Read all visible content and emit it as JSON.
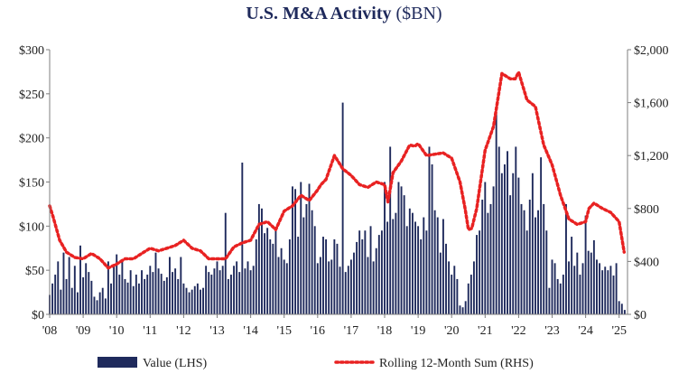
{
  "title": {
    "main": "U.S. M&A Activity",
    "unit": "($BN)"
  },
  "chart_data": {
    "type": "bar",
    "title": "U.S. M&A Activity ($BN)",
    "left_axis": {
      "ticks": [
        "$0",
        "$50",
        "$100",
        "$150",
        "$200",
        "$250",
        "$300"
      ],
      "ylim": [
        0,
        300
      ]
    },
    "right_axis": {
      "ticks": [
        "$0",
        "$400",
        "$800",
        "$1,200",
        "$1,600",
        "$2,000"
      ],
      "ylim": [
        0,
        2000
      ]
    },
    "x_ticks": [
      "'08",
      "'09",
      "'10",
      "'11",
      "'12",
      "'13",
      "'14",
      "'15",
      "'16",
      "'17",
      "'18",
      "'19",
      "'20",
      "'21",
      "'22",
      "'23",
      "'24",
      "'25"
    ],
    "x_range": [
      2008.0,
      2025.25
    ],
    "grid": false,
    "legend_position": "bottom",
    "series": [
      {
        "name": "Value (LHS)",
        "kind": "bar",
        "axis": "left",
        "color": "#1f2a5c",
        "start": 2008.0,
        "step": 0.08333,
        "values": [
          22,
          35,
          45,
          60,
          28,
          70,
          40,
          65,
          30,
          55,
          25,
          78,
          42,
          58,
          48,
          38,
          20,
          16,
          25,
          30,
          18,
          60,
          35,
          55,
          68,
          45,
          62,
          40,
          36,
          50,
          32,
          45,
          35,
          50,
          40,
          45,
          55,
          48,
          70,
          52,
          46,
          38,
          42,
          65,
          48,
          52,
          40,
          65,
          35,
          30,
          25,
          28,
          32,
          35,
          28,
          30,
          55,
          48,
          45,
          52,
          60,
          50,
          55,
          115,
          40,
          45,
          55,
          60,
          48,
          172,
          52,
          60,
          50,
          55,
          85,
          125,
          120,
          92,
          98,
          85,
          80,
          95,
          65,
          75,
          62,
          58,
          85,
          145,
          142,
          88,
          150,
          110,
          125,
          148,
          118,
          100,
          58,
          65,
          88,
          85,
          60,
          62,
          85,
          80,
          54,
          240,
          48,
          55,
          62,
          70,
          82,
          95,
          85,
          95,
          65,
          100,
          60,
          75,
          90,
          95,
          150,
          105,
          190,
          108,
          115,
          150,
          145,
          135,
          100,
          120,
          115,
          105,
          100,
          85,
          110,
          95,
          190,
          170,
          118,
          110,
          70,
          108,
          80,
          60,
          45,
          55,
          40,
          10,
          8,
          15,
          35,
          45,
          60,
          90,
          95,
          130,
          150,
          115,
          125,
          145,
          228,
          190,
          160,
          170,
          185,
          135,
          160,
          190,
          155,
          125,
          118,
          95,
          130,
          160,
          110,
          118,
          178,
          125,
          95,
          30,
          62,
          58,
          40,
          35,
          45,
          125,
          60,
          88,
          55,
          70,
          45,
          58,
          112,
          72,
          70,
          84,
          62,
          58,
          50,
          54,
          50,
          55,
          44,
          58,
          15,
          12,
          5
        ]
      },
      {
        "name": "Rolling 12-Month Sum (RHS)",
        "kind": "line",
        "style": "dotted",
        "axis": "right",
        "color": "#e82222",
        "x": [
          2008.0,
          2008.1,
          2008.3,
          2008.5,
          2008.75,
          2009.0,
          2009.25,
          2009.5,
          2009.75,
          2010.0,
          2010.25,
          2010.5,
          2010.75,
          2011.0,
          2011.25,
          2011.5,
          2011.75,
          2012.0,
          2012.25,
          2012.5,
          2012.75,
          2013.0,
          2013.25,
          2013.5,
          2013.75,
          2014.0,
          2014.25,
          2014.5,
          2014.75,
          2015.0,
          2015.25,
          2015.5,
          2015.75,
          2016.0,
          2016.1,
          2016.25,
          2016.5,
          2016.75,
          2017.0,
          2017.25,
          2017.5,
          2017.75,
          2018.0,
          2018.1,
          2018.25,
          2018.5,
          2018.75,
          2018.9,
          2019.0,
          2019.25,
          2019.5,
          2019.75,
          2020.0,
          2020.25,
          2020.4,
          2020.5,
          2020.6,
          2020.75,
          2021.0,
          2021.25,
          2021.5,
          2021.75,
          2021.9,
          2022.0,
          2022.25,
          2022.5,
          2022.75,
          2023.0,
          2023.25,
          2023.5,
          2023.75,
          2024.0,
          2024.1,
          2024.25,
          2024.5,
          2024.75,
          2025.0,
          2025.15
        ],
        "y": [
          820,
          740,
          560,
          470,
          430,
          420,
          460,
          420,
          350,
          380,
          420,
          420,
          460,
          500,
          480,
          500,
          520,
          560,
          500,
          480,
          420,
          420,
          420,
          510,
          540,
          560,
          680,
          700,
          640,
          780,
          820,
          900,
          860,
          940,
          980,
          1020,
          1200,
          1100,
          1050,
          980,
          960,
          1000,
          980,
          850,
          1070,
          1160,
          1280,
          1270,
          1290,
          1200,
          1210,
          1220,
          1180,
          1000,
          800,
          640,
          650,
          800,
          1240,
          1420,
          1820,
          1780,
          1780,
          1830,
          1620,
          1570,
          1280,
          1130,
          900,
          720,
          680,
          700,
          800,
          840,
          800,
          770,
          700,
          470
        ]
      }
    ]
  },
  "legend": {
    "bar_label": "Value (LHS)",
    "line_label": "Rolling 12-Month Sum (RHS)"
  }
}
